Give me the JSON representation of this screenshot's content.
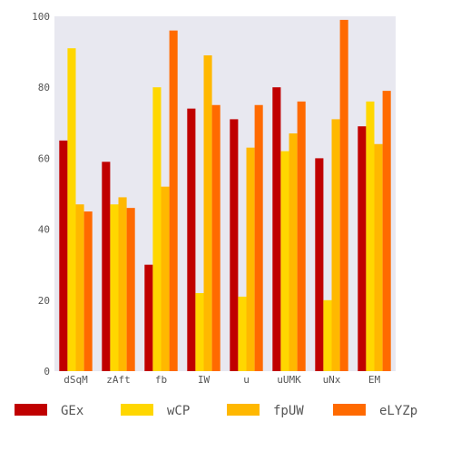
{
  "chart_data": {
    "type": "bar",
    "title": "",
    "xlabel": "",
    "ylabel": "",
    "ylim": [
      0,
      100
    ],
    "yticks": [
      0,
      20,
      40,
      60,
      80,
      100
    ],
    "grid": false,
    "legend_position": "bottom",
    "categories": [
      "dSqM",
      "zAft",
      "fb",
      "IW",
      "u",
      "uUMK",
      "uNx",
      "EM"
    ],
    "series": [
      {
        "name": "GEx",
        "color": "#c00000",
        "values": [
          65,
          59,
          30,
          74,
          71,
          80,
          60,
          69
        ]
      },
      {
        "name": "wCP",
        "color": "#ffd700",
        "values": [
          91,
          47,
          80,
          22,
          21,
          62,
          20,
          76
        ]
      },
      {
        "name": "fpUW",
        "color": "#ffb800",
        "values": [
          47,
          49,
          52,
          89,
          63,
          67,
          71,
          64
        ]
      },
      {
        "name": "eLYZp",
        "color": "#ff6a00",
        "values": [
          45,
          46,
          96,
          75,
          75,
          76,
          99,
          79
        ]
      }
    ],
    "plot_background": "#e8e8f0"
  }
}
